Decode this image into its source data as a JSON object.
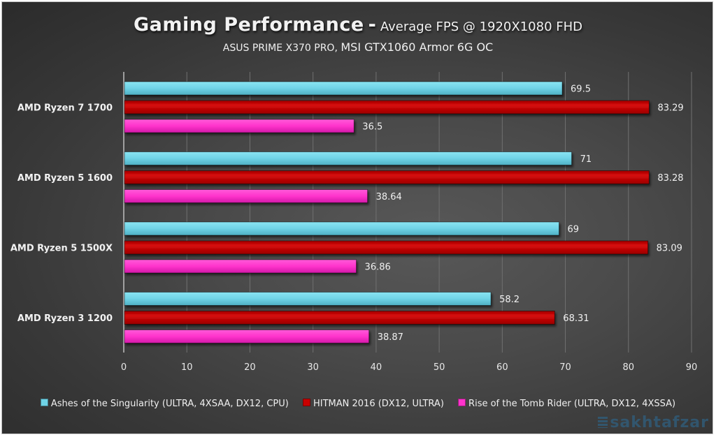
{
  "chart_data": {
    "type": "bar",
    "orientation": "horizontal",
    "title": "Gaming Performance",
    "title_separator": "-",
    "title_suffix": "Average FPS @ 1920X1080 FHD",
    "subtitle_small": "ASUS PRIME X370 PRO,",
    "subtitle_large": "MSI GTX1060 Armor 6G OC",
    "xlabel": "",
    "ylabel": "",
    "xlim": [
      0,
      90
    ],
    "x_ticks": [
      "0",
      "10",
      "20",
      "30",
      "40",
      "50",
      "60",
      "70",
      "80",
      "90"
    ],
    "grid": true,
    "legend_position": "bottom",
    "categories": [
      "AMD Ryzen 7 1700",
      "AMD Ryzen 5 1600",
      "AMD Ryzen 5 1500X",
      "AMD Ryzen 3 1200"
    ],
    "series": [
      {
        "name": "Ashes of the Singularity (ULTRA, 4XSAA, DX12, CPU)",
        "color": "#6fd3e6",
        "values": [
          69.5,
          71,
          69,
          58.2
        ],
        "labels": [
          "69.5",
          "71",
          "69",
          "58.2"
        ]
      },
      {
        "name": "HITMAN 2016 (DX12, ULTRA)",
        "color": "#c90000",
        "values": [
          83.29,
          83.28,
          83.09,
          68.31
        ],
        "labels": [
          "83.29",
          "83.28",
          "83.09",
          "68.31"
        ]
      },
      {
        "name": "Rise of the Tomb Rider (ULTRA, DX12, 4XSSA)",
        "color": "#ff33cc",
        "values": [
          36.5,
          38.64,
          36.86,
          38.87
        ],
        "labels": [
          "36.5",
          "38.64",
          "36.86",
          "38.87"
        ]
      }
    ]
  },
  "watermark": "sakhtafzar"
}
